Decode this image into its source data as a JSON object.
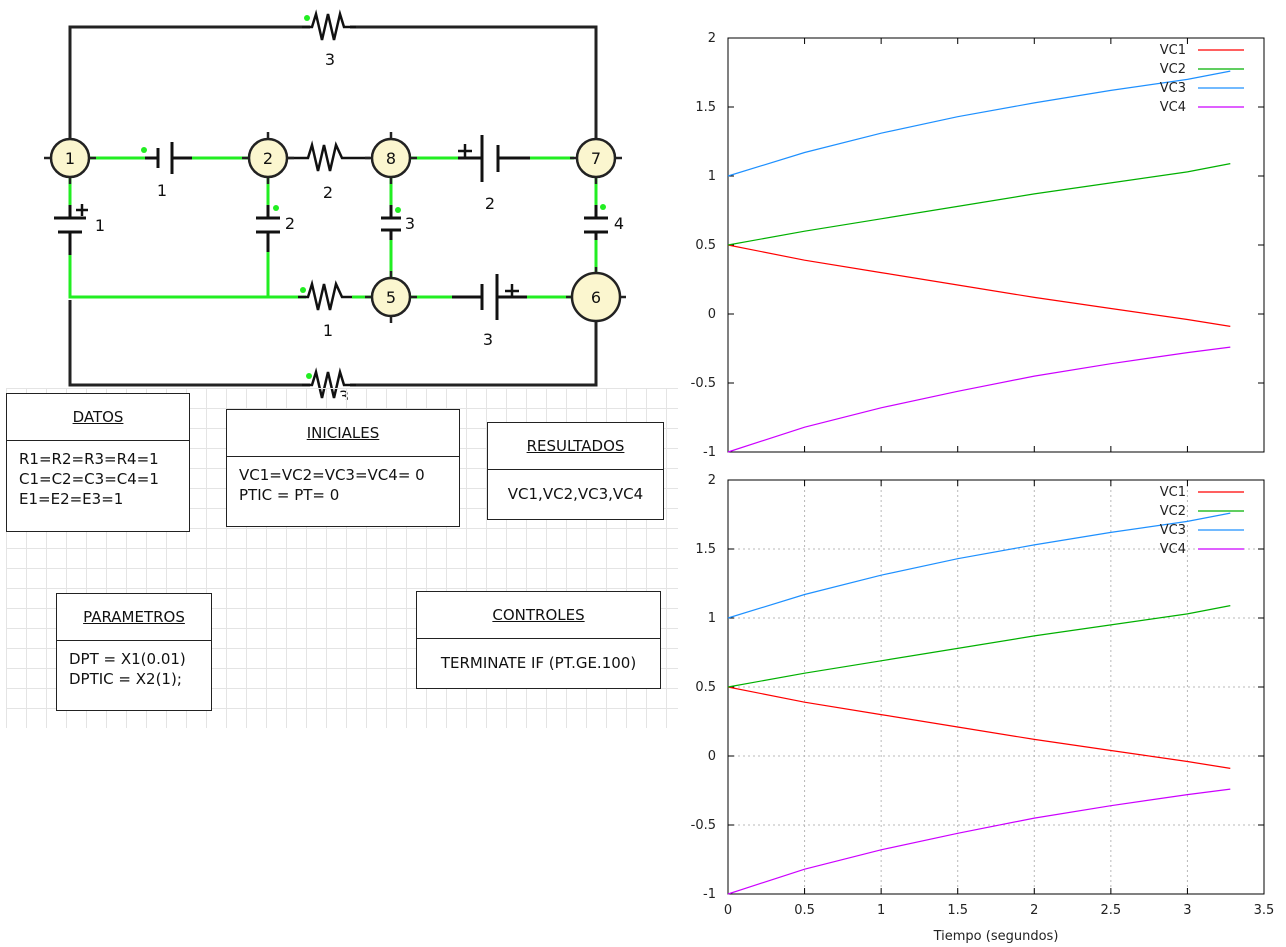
{
  "circuit": {
    "nodes": [
      "1",
      "2",
      "8",
      "7",
      "5",
      "6"
    ],
    "component_labels": {
      "r_top": "3",
      "r_2_8": "2",
      "r_mid_bottom": "1",
      "r_bottom": "3",
      "e_1_2": "1",
      "e_8_7": "2",
      "e_5_6": "3",
      "c_left": "1",
      "c_2": "2",
      "c_3": "3",
      "c_4": "4"
    },
    "wire_color": "#22ee22",
    "node_fill": "#fbf6cf"
  },
  "boxes": {
    "datos": {
      "title": "DATOS",
      "lines": [
        "R1=R2=R3=R4=1",
        "C1=C2=C3=C4=1",
        "E1=E2=E3=1"
      ]
    },
    "iniciales": {
      "title": "INICIALES",
      "lines": [
        "VC1=VC2=VC3=VC4= 0",
        "PTIC = PT= 0"
      ]
    },
    "resultados": {
      "title": "RESULTADOS",
      "lines": [
        "VC1,VC2,VC3,VC4"
      ]
    },
    "parametros": {
      "title": "PARAMETROS",
      "lines": [
        "DPT = X1(0.01)",
        "DPTIC = X2(1);"
      ]
    },
    "controles": {
      "title": "CONTROLES",
      "lines": [
        "TERMINATE IF (PT.GE.100)"
      ]
    }
  },
  "chart_data": [
    {
      "type": "line",
      "xlim": [
        0,
        3.5
      ],
      "ylim": [
        -1,
        2
      ],
      "yticks": [
        "2",
        "1.5",
        "1",
        "0.5",
        "0",
        "-0.5",
        "-1"
      ],
      "xticks": [],
      "xlabel": "",
      "grid": false,
      "legend": "top-right",
      "series": [
        {
          "name": "VC1",
          "color": "#ff0000",
          "x": [
            0,
            0.5,
            1,
            1.5,
            2,
            2.5,
            3,
            3.28
          ],
          "y": [
            0.5,
            0.39,
            0.3,
            0.21,
            0.12,
            0.04,
            -0.04,
            -0.09
          ]
        },
        {
          "name": "VC2",
          "color": "#00b000",
          "x": [
            0,
            0.5,
            1,
            1.5,
            2,
            2.5,
            3,
            3.28
          ],
          "y": [
            0.5,
            0.6,
            0.69,
            0.78,
            0.87,
            0.95,
            1.03,
            1.09
          ]
        },
        {
          "name": "VC3",
          "color": "#1e90ff",
          "x": [
            0,
            0.5,
            1,
            1.5,
            2,
            2.5,
            3,
            3.28
          ],
          "y": [
            1.0,
            1.17,
            1.31,
            1.43,
            1.53,
            1.62,
            1.7,
            1.76
          ]
        },
        {
          "name": "VC4",
          "color": "#cc00ff",
          "x": [
            0,
            0.5,
            1,
            1.5,
            2,
            2.5,
            3,
            3.28
          ],
          "y": [
            -1.0,
            -0.82,
            -0.68,
            -0.56,
            -0.45,
            -0.36,
            -0.28,
            -0.24
          ]
        }
      ]
    },
    {
      "type": "line",
      "xlim": [
        0,
        3.5
      ],
      "ylim": [
        -1,
        2
      ],
      "yticks": [
        "2",
        "1.5",
        "1",
        "0.5",
        "0",
        "-0.5",
        "-1"
      ],
      "xticks": [
        "0",
        "0.5",
        "1",
        "1.5",
        "2",
        "2.5",
        "3",
        "3.5"
      ],
      "xlabel": "Tiempo (segundos)",
      "grid": true,
      "legend": "top-right",
      "series": [
        {
          "name": "VC1",
          "color": "#ff0000",
          "x": [
            0,
            0.5,
            1,
            1.5,
            2,
            2.5,
            3,
            3.28
          ],
          "y": [
            0.5,
            0.39,
            0.3,
            0.21,
            0.12,
            0.04,
            -0.04,
            -0.09
          ]
        },
        {
          "name": "VC2",
          "color": "#00b000",
          "x": [
            0,
            0.5,
            1,
            1.5,
            2,
            2.5,
            3,
            3.28
          ],
          "y": [
            0.5,
            0.6,
            0.69,
            0.78,
            0.87,
            0.95,
            1.03,
            1.09
          ]
        },
        {
          "name": "VC3",
          "color": "#1e90ff",
          "x": [
            0,
            0.5,
            1,
            1.5,
            2,
            2.5,
            3,
            3.28
          ],
          "y": [
            1.0,
            1.17,
            1.31,
            1.43,
            1.53,
            1.62,
            1.7,
            1.76
          ]
        },
        {
          "name": "VC4",
          "color": "#cc00ff",
          "x": [
            0,
            0.5,
            1,
            1.5,
            2,
            2.5,
            3,
            3.28
          ],
          "y": [
            -1.0,
            -0.82,
            -0.68,
            -0.56,
            -0.45,
            -0.36,
            -0.28,
            -0.24
          ]
        }
      ]
    }
  ]
}
